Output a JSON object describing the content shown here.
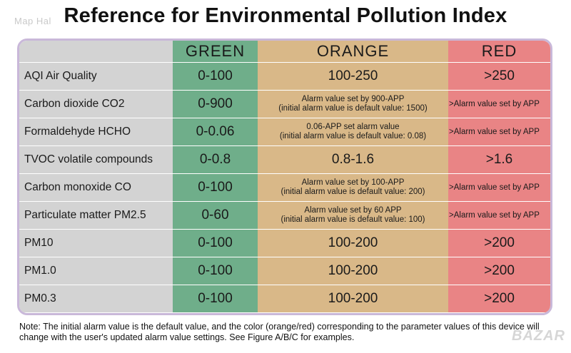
{
  "watermark_left": "Map Hal",
  "watermark_right": "BAZAR",
  "title": "Reference for Environmental Pollution Index",
  "headers": {
    "label": "",
    "green": "GREEN",
    "orange": "ORANGE",
    "red": "RED"
  },
  "colors": {
    "green": "#6fae8a",
    "orange": "#d9b888",
    "red": "#e98485",
    "label_bg": "#d3d3d3",
    "border": "#c9b8d9"
  },
  "rows": [
    {
      "label": "AQI Air Quality",
      "green": "0-100",
      "orange": "100-250",
      "red": ">250"
    },
    {
      "label": "Carbon dioxide CO2",
      "green": "0-900",
      "orange_line1": "Alarm value set by 900-APP",
      "orange_line2": "(initial alarm value is default value: 1500)",
      "red": ">Alarm value set by APP"
    },
    {
      "label": "Formaldehyde HCHO",
      "green": "0-0.06",
      "orange_line1": "0.06-APP set alarm value",
      "orange_line2": "(initial alarm value is default value: 0.08)",
      "red": ">Alarm value set by APP"
    },
    {
      "label": "TVOC volatile compounds",
      "green": "0-0.8",
      "orange": "0.8-1.6",
      "red": ">1.6"
    },
    {
      "label": "Carbon monoxide CO",
      "green": "0-100",
      "orange_line1": "Alarm value set by 100-APP",
      "orange_line2": "(initial alarm value is default value: 200)",
      "red": ">Alarm value set by APP"
    },
    {
      "label": "Particulate matter PM2.5",
      "green": "0-60",
      "orange_line1": "Alarm value set by 60 APP",
      "orange_line2": "(initial alarm value is default value: 100)",
      "red": ">Alarm value set by APP"
    },
    {
      "label": "PM10",
      "green": "0-100",
      "orange": "100-200",
      "red": ">200"
    },
    {
      "label": "PM1.0",
      "green": "0-100",
      "orange": "100-200",
      "red": ">200"
    },
    {
      "label": "PM0.3",
      "green": "0-100",
      "orange": "100-200",
      "red": ">200"
    }
  ],
  "note": "Note: The initial alarm value is the default value, and the color (orange/red) corresponding to the parameter values of this device will change with the user's updated alarm value settings. See Figure A/B/C for examples."
}
